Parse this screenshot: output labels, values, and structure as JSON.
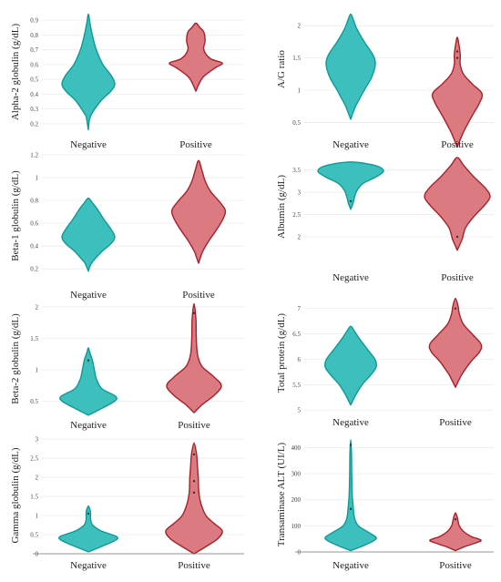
{
  "colors": {
    "negative_fill": "#3dbfbd",
    "negative_stroke": "#0e9a97",
    "positive_fill": "#db7a80",
    "positive_stroke": "#a8202b",
    "grid": "#ebebeb"
  },
  "chart_data": [
    {
      "type": "violin",
      "ylabel": "Alpha-2 globulin (g/dL)",
      "categories": [
        "Negative",
        "Positive"
      ],
      "ylim": [
        0.15,
        0.95
      ],
      "yticks": [
        0.2,
        0.3,
        0.4,
        0.5,
        0.6,
        0.7,
        0.8,
        0.9
      ],
      "ytick_labels": [
        "0.2",
        "0.3",
        "0.4",
        "0.5",
        "0.6",
        "0.7",
        "0.8",
        "0.9"
      ],
      "grid": true,
      "violins": [
        {
          "category": "Negative",
          "profile": [
            [
              0.16,
              0
            ],
            [
              0.25,
              0.08
            ],
            [
              0.35,
              0.45
            ],
            [
              0.42,
              0.85
            ],
            [
              0.47,
              1.0
            ],
            [
              0.53,
              0.85
            ],
            [
              0.6,
              0.55
            ],
            [
              0.7,
              0.3
            ],
            [
              0.8,
              0.15
            ],
            [
              0.88,
              0.06
            ],
            [
              0.94,
              0
            ]
          ],
          "outliers": []
        },
        {
          "category": "Positive",
          "profile": [
            [
              0.42,
              0
            ],
            [
              0.47,
              0.12
            ],
            [
              0.52,
              0.3
            ],
            [
              0.58,
              0.75
            ],
            [
              0.61,
              1.0
            ],
            [
              0.64,
              0.55
            ],
            [
              0.7,
              0.3
            ],
            [
              0.76,
              0.35
            ],
            [
              0.82,
              0.3
            ],
            [
              0.85,
              0.15
            ],
            [
              0.88,
              0
            ]
          ],
          "outliers": []
        }
      ]
    },
    {
      "type": "violin",
      "ylabel": "A/G ratio",
      "categories": [
        "Negative",
        "Positive"
      ],
      "ylim": [
        0.45,
        2.2
      ],
      "yticks": [
        0.5,
        1,
        1.5,
        2
      ],
      "ytick_labels": [
        "0.5",
        "1",
        "1.5",
        "2"
      ],
      "grid": true,
      "violins": [
        {
          "category": "Negative",
          "profile": [
            [
              0.55,
              0
            ],
            [
              0.75,
              0.2
            ],
            [
              1.0,
              0.55
            ],
            [
              1.2,
              0.85
            ],
            [
              1.4,
              1.0
            ],
            [
              1.55,
              0.9
            ],
            [
              1.75,
              0.55
            ],
            [
              1.95,
              0.25
            ],
            [
              2.1,
              0.1
            ],
            [
              2.18,
              0
            ]
          ],
          "outliers": []
        },
        {
          "category": "Positive",
          "profile": [
            [
              0.12,
              0
            ],
            [
              0.35,
              0.25
            ],
            [
              0.6,
              0.6
            ],
            [
              0.8,
              0.9
            ],
            [
              0.95,
              1.0
            ],
            [
              1.1,
              0.6
            ],
            [
              1.25,
              0.25
            ],
            [
              1.4,
              0.12
            ],
            [
              1.55,
              0.12
            ],
            [
              1.7,
              0.07
            ],
            [
              1.82,
              0
            ]
          ],
          "outliers": [
            1.5,
            1.6
          ]
        }
      ]
    },
    {
      "type": "violin",
      "ylabel": "Beta-1 globulin (g/dL)",
      "categories": [
        "Negative",
        "Positive"
      ],
      "ylim": [
        0.13,
        1.2
      ],
      "yticks": [
        0.2,
        0.4,
        0.6,
        0.8,
        1,
        1.2
      ],
      "ytick_labels": [
        "0.2",
        "0.4",
        "0.6",
        "0.8",
        "1",
        "1.2"
      ],
      "grid": true,
      "violins": [
        {
          "category": "Negative",
          "profile": [
            [
              0.18,
              0
            ],
            [
              0.25,
              0.12
            ],
            [
              0.35,
              0.5
            ],
            [
              0.42,
              0.85
            ],
            [
              0.48,
              1.0
            ],
            [
              0.55,
              0.85
            ],
            [
              0.63,
              0.6
            ],
            [
              0.72,
              0.35
            ],
            [
              0.78,
              0.15
            ],
            [
              0.82,
              0
            ]
          ],
          "outliers": []
        },
        {
          "category": "Positive",
          "profile": [
            [
              0.25,
              0
            ],
            [
              0.35,
              0.15
            ],
            [
              0.45,
              0.4
            ],
            [
              0.55,
              0.7
            ],
            [
              0.65,
              0.95
            ],
            [
              0.72,
              1.0
            ],
            [
              0.8,
              0.75
            ],
            [
              0.88,
              0.45
            ],
            [
              0.97,
              0.25
            ],
            [
              1.07,
              0.12
            ],
            [
              1.15,
              0
            ]
          ],
          "outliers": []
        }
      ]
    },
    {
      "type": "violin",
      "ylabel": "Albumin (g/dL)",
      "categories": [
        "Negative",
        "Positive"
      ],
      "ylim": [
        1.55,
        3.8
      ],
      "yticks": [
        2,
        2.5,
        3,
        3.5
      ],
      "ytick_labels": [
        "2",
        "2.5",
        "3",
        "3.5"
      ],
      "grid": true,
      "violins": [
        {
          "category": "Negative",
          "profile": [
            [
              2.62,
              0
            ],
            [
              2.75,
              0.07
            ],
            [
              2.9,
              0.12
            ],
            [
              3.05,
              0.2
            ],
            [
              3.2,
              0.38
            ],
            [
              3.35,
              0.78
            ],
            [
              3.48,
              1.0
            ],
            [
              3.6,
              0.75
            ],
            [
              3.68,
              0
            ]
          ],
          "outliers": [
            2.8
          ]
        },
        {
          "category": "Positive",
          "profile": [
            [
              1.7,
              0
            ],
            [
              1.95,
              0.15
            ],
            [
              2.2,
              0.25
            ],
            [
              2.45,
              0.5
            ],
            [
              2.7,
              0.82
            ],
            [
              2.9,
              1.0
            ],
            [
              3.1,
              0.85
            ],
            [
              3.35,
              0.5
            ],
            [
              3.6,
              0.2
            ],
            [
              3.78,
              0
            ]
          ],
          "outliers": [
            2.0
          ]
        }
      ]
    },
    {
      "type": "violin",
      "ylabel": "Beta-2 globulin (g/dL)",
      "categories": [
        "Negative",
        "Positive"
      ],
      "ylim": [
        0.25,
        2.1
      ],
      "yticks": [
        0.5,
        1,
        1.5,
        2
      ],
      "ytick_labels": [
        "0.5",
        "1",
        "1.5",
        "2"
      ],
      "grid": true,
      "violins": [
        {
          "category": "Negative",
          "profile": [
            [
              0.28,
              0
            ],
            [
              0.38,
              0.45
            ],
            [
              0.5,
              0.95
            ],
            [
              0.58,
              1.0
            ],
            [
              0.7,
              0.5
            ],
            [
              0.85,
              0.3
            ],
            [
              1.0,
              0.22
            ],
            [
              1.15,
              0.15
            ],
            [
              1.28,
              0.05
            ],
            [
              1.35,
              0
            ]
          ],
          "outliers": [
            1.15
          ]
        },
        {
          "category": "Positive",
          "profile": [
            [
              0.32,
              0
            ],
            [
              0.45,
              0.3
            ],
            [
              0.6,
              0.75
            ],
            [
              0.75,
              1.0
            ],
            [
              0.9,
              0.7
            ],
            [
              1.05,
              0.3
            ],
            [
              1.2,
              0.15
            ],
            [
              1.35,
              0.1
            ],
            [
              1.55,
              0.08
            ],
            [
              1.8,
              0.07
            ],
            [
              2.05,
              0
            ]
          ],
          "outliers": [
            1.9
          ]
        }
      ]
    },
    {
      "type": "violin",
      "ylabel": "Total protein (g/dL)",
      "categories": [
        "Negative",
        "Positive"
      ],
      "ylim": [
        4.95,
        7.3
      ],
      "yticks": [
        5,
        5.5,
        6,
        6.5,
        7
      ],
      "ytick_labels": [
        "5",
        "5.5",
        "6",
        "6.5",
        "7"
      ],
      "grid": true,
      "violins": [
        {
          "category": "Negative",
          "profile": [
            [
              5.1,
              0
            ],
            [
              5.3,
              0.2
            ],
            [
              5.5,
              0.45
            ],
            [
              5.7,
              0.8
            ],
            [
              5.85,
              1.0
            ],
            [
              6.0,
              0.95
            ],
            [
              6.2,
              0.65
            ],
            [
              6.4,
              0.35
            ],
            [
              6.55,
              0.15
            ],
            [
              6.65,
              0
            ]
          ],
          "outliers": []
        },
        {
          "category": "Positive",
          "profile": [
            [
              5.45,
              0
            ],
            [
              5.7,
              0.25
            ],
            [
              5.95,
              0.6
            ],
            [
              6.15,
              0.95
            ],
            [
              6.3,
              1.0
            ],
            [
              6.5,
              0.65
            ],
            [
              6.7,
              0.3
            ],
            [
              6.9,
              0.15
            ],
            [
              7.05,
              0.1
            ],
            [
              7.2,
              0
            ]
          ],
          "outliers": [
            7.0
          ]
        }
      ]
    },
    {
      "type": "violin",
      "ylabel": "Gamma globulin (g/dL)",
      "categories": [
        "Negative",
        "Positive"
      ],
      "ylim": [
        0,
        3.05
      ],
      "yticks": [
        0,
        0.5,
        1,
        1.5,
        2,
        2.5,
        3
      ],
      "ytick_labels": [
        "0",
        "0.5",
        "1",
        "1.5",
        "2",
        "2.5",
        "3"
      ],
      "grid": true,
      "violins": [
        {
          "category": "Negative",
          "profile": [
            [
              0.05,
              0
            ],
            [
              0.2,
              0.5
            ],
            [
              0.35,
              0.95
            ],
            [
              0.45,
              1.0
            ],
            [
              0.6,
              0.45
            ],
            [
              0.75,
              0.15
            ],
            [
              0.9,
              0.08
            ],
            [
              1.05,
              0.08
            ],
            [
              1.15,
              0.06
            ],
            [
              1.25,
              0
            ]
          ],
          "outliers": [
            1.05
          ]
        },
        {
          "category": "Positive",
          "profile": [
            [
              0.0,
              0
            ],
            [
              0.2,
              0.45
            ],
            [
              0.4,
              0.85
            ],
            [
              0.6,
              1.0
            ],
            [
              0.8,
              0.7
            ],
            [
              1.0,
              0.42
            ],
            [
              1.3,
              0.25
            ],
            [
              1.6,
              0.17
            ],
            [
              2.0,
              0.15
            ],
            [
              2.3,
              0.12
            ],
            [
              2.6,
              0.09
            ],
            [
              2.9,
              0
            ]
          ],
          "outliers": [
            1.6,
            1.9,
            2.6
          ]
        }
      ]
    },
    {
      "type": "violin",
      "ylabel": "Transaminase ALT (UI/L)",
      "categories": [
        "Negative",
        "Positive"
      ],
      "ylim": [
        0,
        440
      ],
      "yticks": [
        0,
        100,
        200,
        300,
        400
      ],
      "ytick_labels": [
        "0",
        "100",
        "200",
        "300",
        "400"
      ],
      "grid": true,
      "violins": [
        {
          "category": "Negative",
          "profile": [
            [
              5,
              0
            ],
            [
              20,
              0.4
            ],
            [
              40,
              0.85
            ],
            [
              55,
              1.0
            ],
            [
              75,
              0.7
            ],
            [
              100,
              0.3
            ],
            [
              130,
              0.15
            ],
            [
              170,
              0.1
            ],
            [
              220,
              0.06
            ],
            [
              300,
              0.04
            ],
            [
              380,
              0.03
            ],
            [
              430,
              0
            ]
          ],
          "outliers": [
            165,
            410
          ]
        },
        {
          "category": "Positive",
          "profile": [
            [
              5,
              0
            ],
            [
              20,
              0.35
            ],
            [
              35,
              0.8
            ],
            [
              45,
              1.0
            ],
            [
              60,
              0.6
            ],
            [
              80,
              0.3
            ],
            [
              100,
              0.15
            ],
            [
              120,
              0.1
            ],
            [
              140,
              0.05
            ],
            [
              150,
              0
            ]
          ],
          "outliers": [
            125
          ]
        }
      ]
    }
  ]
}
